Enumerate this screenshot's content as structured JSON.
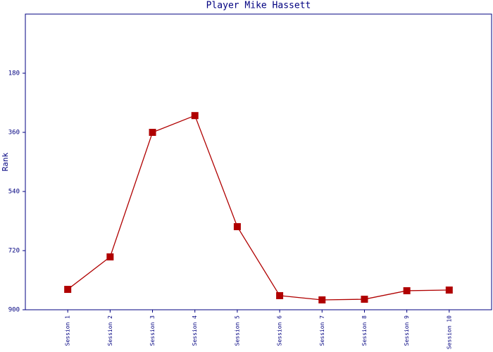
{
  "chart_data": {
    "type": "line",
    "title": "Player Mike Hassett",
    "y_label": "Rank",
    "categories": [
      "Session 1",
      "Session 2",
      "Session 3",
      "Session 4",
      "Session 5",
      "Session 6",
      "Session 7",
      "Session 8",
      "Session 9",
      "Session 10"
    ],
    "series": [
      {
        "name": "Rank",
        "color": "#b00000",
        "values": [
          838,
          739,
          360,
          309,
          647,
          857,
          870,
          868,
          842,
          840
        ]
      }
    ],
    "ylim": [
      0,
      900
    ],
    "y_inverted": true,
    "yticks": [
      180,
      360,
      540,
      720,
      900
    ],
    "axis_color": "#000080"
  }
}
